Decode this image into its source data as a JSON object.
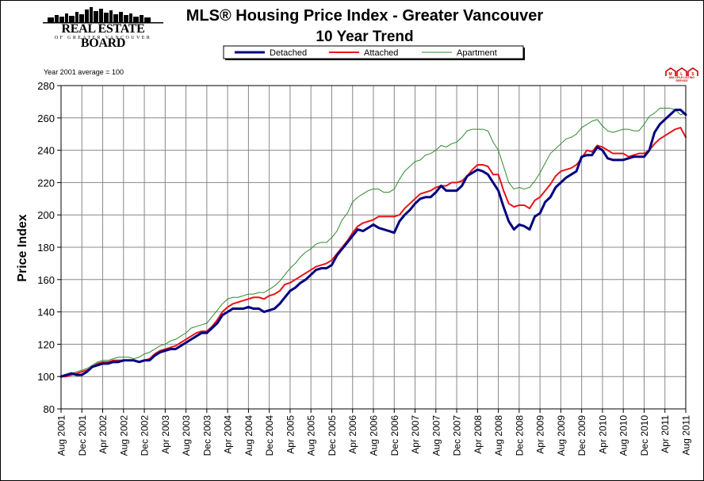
{
  "header": {
    "logo_name": "REAL ESTATE BOARD",
    "logo_sub": "OF GREATER VANCOUVER",
    "title_line1": "MLS®  Housing Price Index - Greater Vancouver",
    "title_line2": "10 Year Trend",
    "note": "Year 2001 average = 100",
    "mls_logo_text": "MULTIPLE LISTING SERVICE"
  },
  "chart_data": {
    "type": "line",
    "title": "MLS®  Housing Price Index - Greater Vancouver 10 Year Trend",
    "xlabel": "",
    "ylabel": "Price Index",
    "ylim": [
      80,
      280
    ],
    "yticks": [
      80,
      100,
      120,
      140,
      160,
      180,
      200,
      220,
      240,
      260,
      280
    ],
    "grid": true,
    "legend_position": "top-center",
    "x_tick_labels": [
      "Aug 2001",
      "Dec 2001",
      "Apr 2002",
      "Aug 2002",
      "Dec 2002",
      "Apr 2003",
      "Aug 2003",
      "Dec 2003",
      "Apr 2004",
      "Aug 2004",
      "Dec 2004",
      "Apr 2005",
      "Aug 2005",
      "Dec 2005",
      "Apr 2006",
      "Aug 2006",
      "Dec 2006",
      "Apr 2007",
      "Aug 2007",
      "Dec 2007",
      "Apr 2008",
      "Aug 2008",
      "Dec 2008",
      "Apr 2009",
      "Aug 2009",
      "Dec 2009",
      "Apr 2010",
      "Aug 2010",
      "Dec 2010",
      "Apr 2011",
      "Aug 2011"
    ],
    "series": [
      {
        "name": "Detached",
        "color": "#000080",
        "stroke_width": 3,
        "values": [
          100,
          101,
          102,
          101,
          101,
          103,
          106,
          107,
          108,
          108,
          109,
          109,
          110,
          110,
          110,
          109,
          110,
          110,
          113,
          115,
          116,
          117,
          117,
          119,
          121,
          123,
          125,
          127,
          127,
          130,
          133,
          138,
          140,
          142,
          142,
          142,
          143,
          142,
          142,
          140,
          141,
          142,
          145,
          149,
          153,
          155,
          158,
          160,
          163,
          166,
          167,
          167,
          169,
          175,
          179,
          183,
          187,
          191,
          190,
          192,
          194,
          192,
          191,
          190,
          189,
          196,
          200,
          203,
          207,
          210,
          211,
          211,
          214,
          218,
          215,
          215,
          215,
          218,
          224,
          226,
          228,
          227,
          225,
          220,
          215,
          205,
          196,
          191,
          194,
          193,
          191,
          199,
          201,
          208,
          211,
          217,
          220,
          223,
          225,
          227,
          236,
          237,
          237,
          242,
          240,
          235,
          234,
          234,
          234,
          235,
          236,
          236,
          236,
          240,
          251,
          256,
          259,
          262,
          265,
          265,
          262
        ]
      },
      {
        "name": "Attached",
        "color": "#e8131b",
        "stroke_width": 2,
        "values": [
          100,
          100,
          101,
          102,
          103,
          104,
          106,
          108,
          109,
          109,
          110,
          110,
          110,
          110,
          110,
          109,
          110,
          111,
          114,
          116,
          117,
          118,
          119,
          121,
          123,
          125,
          127,
          128,
          128,
          131,
          135,
          140,
          143,
          145,
          146,
          147,
          148,
          149,
          149,
          148,
          150,
          151,
          153,
          157,
          158,
          160,
          162,
          164,
          166,
          168,
          169,
          170,
          172,
          176,
          180,
          184,
          189,
          193,
          195,
          196,
          197,
          199,
          199,
          199,
          199,
          200,
          204,
          207,
          210,
          213,
          214,
          215,
          217,
          218,
          218,
          220,
          220,
          221,
          224,
          228,
          231,
          231,
          230,
          225,
          225,
          215,
          207,
          205,
          206,
          206,
          204,
          209,
          211,
          215,
          219,
          224,
          227,
          228,
          229,
          231,
          235,
          240,
          239,
          243,
          242,
          240,
          238,
          238,
          238,
          236,
          237,
          238,
          238,
          240,
          244,
          247,
          249,
          251,
          253,
          254,
          248
        ]
      },
      {
        "name": "Apartment",
        "color": "#2e8b2e",
        "stroke_width": 1,
        "values": [
          100,
          101,
          102,
          103,
          104,
          105,
          107,
          109,
          110,
          110,
          111,
          112,
          112,
          112,
          111,
          112,
          114,
          115,
          117,
          119,
          120,
          122,
          123,
          125,
          127,
          130,
          131,
          132,
          133,
          137,
          141,
          145,
          148,
          149,
          149,
          150,
          151,
          151,
          152,
          152,
          154,
          156,
          159,
          163,
          167,
          170,
          174,
          177,
          179,
          182,
          183,
          183,
          186,
          190,
          197,
          201,
          208,
          211,
          213,
          215,
          216,
          216,
          214,
          214,
          216,
          222,
          227,
          230,
          233,
          234,
          237,
          238,
          240,
          243,
          242,
          244,
          245,
          248,
          252,
          253,
          253,
          253,
          252,
          245,
          240,
          230,
          220,
          216,
          217,
          216,
          217,
          221,
          226,
          232,
          238,
          241,
          244,
          247,
          248,
          250,
          254,
          256,
          258,
          259,
          255,
          252,
          251,
          252,
          253,
          253,
          252,
          252,
          256,
          261,
          263,
          266,
          266,
          266,
          265,
          262,
          263
        ]
      }
    ]
  }
}
